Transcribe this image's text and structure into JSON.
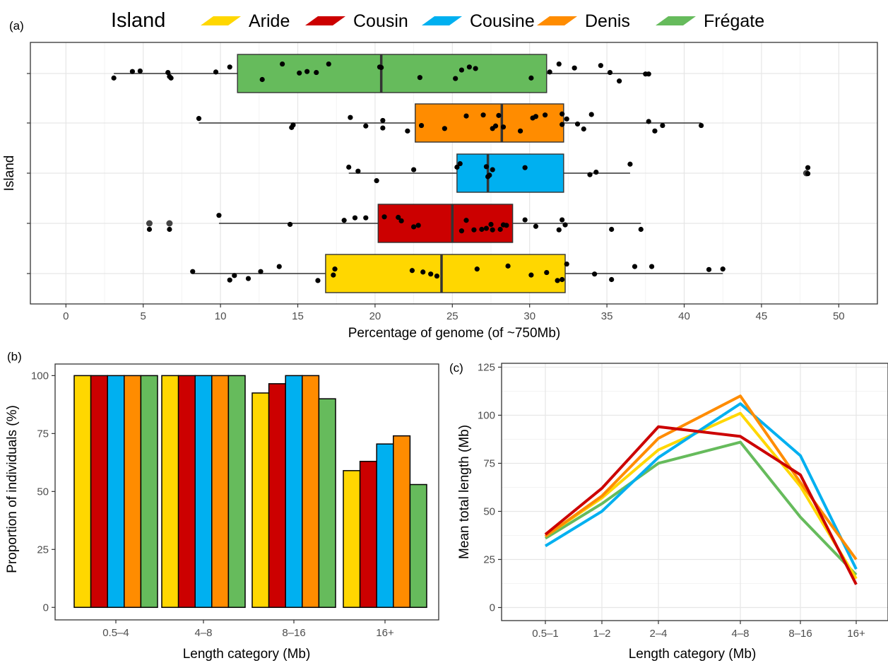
{
  "colors": {
    "Aride": "#FFD700",
    "Cousin": "#CC0000",
    "Cousine": "#00B0F0",
    "Denis": "#FF8C00",
    "Frégate": "#66BB5C"
  },
  "legend": {
    "title": "Island",
    "entries": [
      "Aride",
      "Cousin",
      "Cousine",
      "Denis",
      "Frégate"
    ]
  },
  "panels": {
    "a": "(a)",
    "b": "(b)",
    "c": "(c)"
  },
  "chart_data": [
    {
      "type": "box",
      "panel": "(a)",
      "xlabel": "Percentage of genome (of ~750Mb)",
      "ylabel": "Island",
      "xlim": [
        -2.3,
        52.5
      ],
      "xticks": [
        0,
        5,
        10,
        15,
        20,
        25,
        30,
        35,
        40,
        45,
        50
      ],
      "grid": true,
      "boxes": [
        {
          "island": "Frégate",
          "whisker_low": 3.1,
          "q1": 11.1,
          "median": 20.4,
          "q3": 31.1,
          "whisker_high": 37.7,
          "outliers": [],
          "points": [
            [
              3.1,
              -0.09
            ],
            [
              4.3,
              0.04
            ],
            [
              4.8,
              0.05
            ],
            [
              6.6,
              0.02
            ],
            [
              6.7,
              -0.06
            ],
            [
              6.8,
              -0.09
            ],
            [
              9.7,
              0.03
            ],
            [
              10.6,
              0.13
            ],
            [
              12.7,
              -0.12
            ],
            [
              14.0,
              0.19
            ],
            [
              15.1,
              0.01
            ],
            [
              15.6,
              0.04
            ],
            [
              16.2,
              0.02
            ],
            [
              17.0,
              0.19
            ],
            [
              20.3,
              0.13
            ],
            [
              20.4,
              0.12
            ],
            [
              22.9,
              -0.08
            ],
            [
              25.2,
              -0.1
            ],
            [
              25.6,
              0.07
            ],
            [
              26.1,
              0.13
            ],
            [
              26.5,
              0.1
            ],
            [
              30.1,
              -0.09
            ],
            [
              31.9,
              0.19
            ],
            [
              31.3,
              0.03
            ],
            [
              32.9,
              0.11
            ],
            [
              34.6,
              0.16
            ],
            [
              35.2,
              0.02
            ],
            [
              35.8,
              -0.15
            ],
            [
              37.5,
              -0.01
            ],
            [
              37.7,
              -0.01
            ]
          ]
        },
        {
          "island": "Denis",
          "whisker_low": 8.6,
          "q1": 22.6,
          "median": 28.2,
          "q3": 32.2,
          "whisker_high": 41.1,
          "outliers": [],
          "points": [
            [
              8.6,
              0.09
            ],
            [
              14.6,
              -0.09
            ],
            [
              14.7,
              -0.04
            ],
            [
              18.4,
              0.11
            ],
            [
              19.4,
              -0.06
            ],
            [
              20.5,
              0.05
            ],
            [
              20.5,
              -0.1
            ],
            [
              22.1,
              -0.16
            ],
            [
              23.0,
              -0.05
            ],
            [
              24.5,
              -0.11
            ],
            [
              25.9,
              0.14
            ],
            [
              27.0,
              0.16
            ],
            [
              27.6,
              -0.11
            ],
            [
              27.8,
              -0.06
            ],
            [
              28.0,
              0.15
            ],
            [
              28.3,
              -0.08
            ],
            [
              29.4,
              -0.16
            ],
            [
              30.2,
              0.1
            ],
            [
              30.4,
              0.13
            ],
            [
              31.0,
              0.16
            ],
            [
              32.1,
              0.18
            ],
            [
              32.1,
              -0.03
            ],
            [
              32.4,
              0.08
            ],
            [
              33.1,
              -0.02
            ],
            [
              33.5,
              -0.12
            ],
            [
              34.0,
              0.17
            ],
            [
              37.7,
              0.03
            ],
            [
              38.1,
              -0.16
            ],
            [
              38.6,
              -0.05
            ],
            [
              41.1,
              -0.05
            ]
          ]
        },
        {
          "island": "Cousine",
          "whisker_low": 18.3,
          "q1": 25.3,
          "median": 27.3,
          "q3": 32.2,
          "whisker_high": 36.5,
          "outliers": [
            47.9
          ],
          "points": [
            [
              18.3,
              0.12
            ],
            [
              18.9,
              0.04
            ],
            [
              20.1,
              -0.15
            ],
            [
              22.5,
              0.07
            ],
            [
              25.3,
              0.12
            ],
            [
              25.5,
              0.19
            ],
            [
              27.2,
              0.13
            ],
            [
              27.3,
              -0.07
            ],
            [
              27.4,
              -0.04
            ],
            [
              27.6,
              0.07
            ],
            [
              29.7,
              0.11
            ],
            [
              33.9,
              -0.03
            ],
            [
              34.3,
              0.02
            ],
            [
              36.5,
              0.18
            ],
            [
              48.0,
              0.11
            ],
            [
              48.0,
              -0.01
            ]
          ]
        },
        {
          "island": "Cousin",
          "whisker_low": 9.9,
          "q1": 20.2,
          "median": 25.0,
          "q3": 28.9,
          "whisker_high": 37.2,
          "outliers": [
            5.4,
            6.7
          ],
          "points": [
            [
              5.4,
              -0.12
            ],
            [
              6.7,
              -0.12
            ],
            [
              9.9,
              0.16
            ],
            [
              14.5,
              -0.02
            ],
            [
              18.0,
              0.06
            ],
            [
              18.7,
              0.11
            ],
            [
              19.4,
              0.11
            ],
            [
              20.6,
              0.13
            ],
            [
              21.5,
              0.12
            ],
            [
              21.7,
              0.05
            ],
            [
              22.5,
              -0.07
            ],
            [
              22.8,
              -0.04
            ],
            [
              25.6,
              -0.15
            ],
            [
              25.9,
              0.06
            ],
            [
              26.4,
              -0.13
            ],
            [
              26.9,
              -0.12
            ],
            [
              27.2,
              -0.1
            ],
            [
              27.5,
              -0.02
            ],
            [
              27.6,
              -0.13
            ],
            [
              28.1,
              -0.12
            ],
            [
              28.3,
              -0.03
            ],
            [
              28.5,
              -0.04
            ],
            [
              29.7,
              0.07
            ],
            [
              30.4,
              -0.06
            ],
            [
              32.1,
              0.07
            ],
            [
              32.3,
              -0.03
            ],
            [
              31.9,
              -0.13
            ],
            [
              35.3,
              -0.12
            ],
            [
              37.2,
              -0.12
            ]
          ]
        },
        {
          "island": "Aride",
          "whisker_low": 8.2,
          "q1": 16.8,
          "median": 24.3,
          "q3": 32.3,
          "whisker_high": 42.5,
          "outliers": [],
          "points": [
            [
              8.2,
              0.04
            ],
            [
              10.6,
              -0.13
            ],
            [
              10.9,
              -0.04
            ],
            [
              11.8,
              -0.1
            ],
            [
              12.6,
              0.04
            ],
            [
              13.8,
              0.14
            ],
            [
              16.3,
              -0.14
            ],
            [
              17.3,
              -0.03
            ],
            [
              17.4,
              0.09
            ],
            [
              22.4,
              0.06
            ],
            [
              23.1,
              0.03
            ],
            [
              23.6,
              -0.01
            ],
            [
              24.0,
              -0.05
            ],
            [
              26.6,
              0.09
            ],
            [
              28.6,
              0.15
            ],
            [
              30.1,
              -0.03
            ],
            [
              31.1,
              0.02
            ],
            [
              31.8,
              -0.14
            ],
            [
              32.1,
              -0.12
            ],
            [
              32.4,
              0.19
            ],
            [
              34.2,
              -0.01
            ],
            [
              35.3,
              -0.12
            ],
            [
              36.8,
              0.14
            ],
            [
              37.9,
              0.14
            ],
            [
              41.6,
              0.08
            ],
            [
              42.5,
              0.09
            ]
          ]
        }
      ]
    },
    {
      "type": "bar",
      "panel": "(b)",
      "xlabel": "Length category (Mb)",
      "ylabel": "Proportion of individuals (%)",
      "ylim": [
        -5.4,
        105
      ],
      "yticks": [
        0,
        25,
        50,
        75,
        100
      ],
      "grid": false,
      "categories": [
        "0.5–4",
        "4–8",
        "8–16",
        "16+"
      ],
      "series": [
        {
          "name": "Aride",
          "values": [
            100,
            100,
            92.5,
            59
          ]
        },
        {
          "name": "Cousin",
          "values": [
            100,
            100,
            96.5,
            63
          ]
        },
        {
          "name": "Cousine",
          "values": [
            100,
            100,
            100,
            70.5
          ]
        },
        {
          "name": "Denis",
          "values": [
            100,
            100,
            100,
            74
          ]
        },
        {
          "name": "Frégate",
          "values": [
            100,
            100,
            90,
            53
          ]
        }
      ]
    },
    {
      "type": "line",
      "panel": "(c)",
      "xlabel": "Length category (Mb)",
      "ylabel": "Mean total length (Mb)",
      "ylim": [
        -6.8,
        127
      ],
      "yticks": [
        0,
        25,
        50,
        75,
        100,
        125
      ],
      "grid": true,
      "categories": [
        "0.5–1",
        "1–2",
        "2–4",
        "4–8",
        "8–16",
        "16+"
      ],
      "series": [
        {
          "name": "Frégate",
          "values": [
            36,
            54,
            75,
            86,
            47,
            17
          ]
        },
        {
          "name": "Aride",
          "values": [
            37,
            57,
            82,
            101,
            63,
            15
          ]
        },
        {
          "name": "Cousine",
          "values": [
            32,
            50,
            78,
            106,
            79,
            20
          ]
        },
        {
          "name": "Denis",
          "values": [
            37,
            58,
            88,
            110,
            65,
            25
          ]
        },
        {
          "name": "Cousin",
          "values": [
            38,
            62,
            94,
            89,
            69,
            12
          ]
        }
      ]
    }
  ]
}
